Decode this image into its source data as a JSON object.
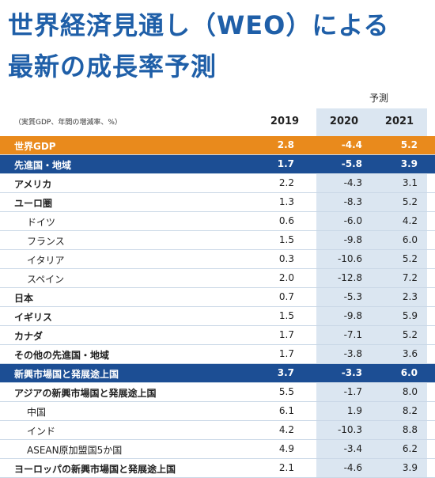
{
  "title": {
    "line1": "世界経済見通し（WEO）による",
    "line2": "最新の成長率予測"
  },
  "forecast_label": "予測",
  "table": {
    "note": "（実質GDP、年間の増減率、%）",
    "years": [
      "2019",
      "2020",
      "2021"
    ],
    "rows": [
      {
        "label": "世界GDP",
        "level": 0,
        "style": "orange",
        "v2019": "2.8",
        "v2020": "-4.4",
        "v2021": "5.2"
      },
      {
        "label": "先進国・地域",
        "level": 0,
        "style": "blue",
        "v2019": "1.7",
        "v2020": "-5.8",
        "v2021": "3.9"
      },
      {
        "label": "アメリカ",
        "level": 0,
        "style": "plain",
        "v2019": "2.2",
        "v2020": "-4.3",
        "v2021": "3.1"
      },
      {
        "label": "ユーロ圏",
        "level": 0,
        "style": "plain",
        "v2019": "1.3",
        "v2020": "-8.3",
        "v2021": "5.2"
      },
      {
        "label": "ドイツ",
        "level": 1,
        "style": "plain",
        "v2019": "0.6",
        "v2020": "-6.0",
        "v2021": "4.2"
      },
      {
        "label": "フランス",
        "level": 1,
        "style": "plain",
        "v2019": "1.5",
        "v2020": "-9.8",
        "v2021": "6.0"
      },
      {
        "label": "イタリア",
        "level": 1,
        "style": "plain",
        "v2019": "0.3",
        "v2020": "-10.6",
        "v2021": "5.2"
      },
      {
        "label": "スペイン",
        "level": 1,
        "style": "plain",
        "v2019": "2.0",
        "v2020": "-12.8",
        "v2021": "7.2"
      },
      {
        "label": "日本",
        "level": 0,
        "style": "plain",
        "v2019": "0.7",
        "v2020": "-5.3",
        "v2021": "2.3"
      },
      {
        "label": "イギリス",
        "level": 0,
        "style": "plain",
        "v2019": "1.5",
        "v2020": "-9.8",
        "v2021": "5.9"
      },
      {
        "label": "カナダ",
        "level": 0,
        "style": "plain",
        "v2019": "1.7",
        "v2020": "-7.1",
        "v2021": "5.2"
      },
      {
        "label": "その他の先進国・地域",
        "level": 0,
        "style": "plain",
        "v2019": "1.7",
        "v2020": "-3.8",
        "v2021": "3.6"
      },
      {
        "label": "新興市場国と発展途上国",
        "level": 0,
        "style": "blue",
        "v2019": "3.7",
        "v2020": "-3.3",
        "v2021": "6.0"
      },
      {
        "label": "アジアの新興市場国と発展途上国",
        "level": 0,
        "style": "plain",
        "v2019": "5.5",
        "v2020": "-1.7",
        "v2021": "8.0"
      },
      {
        "label": "中国",
        "level": 1,
        "style": "plain",
        "v2019": "6.1",
        "v2020": "1.9",
        "v2021": "8.2"
      },
      {
        "label": "インド",
        "level": 1,
        "style": "plain",
        "v2019": "4.2",
        "v2020": "-10.3",
        "v2021": "8.8"
      },
      {
        "label": "ASEAN原加盟国5か国",
        "level": 1,
        "style": "plain",
        "v2019": "4.9",
        "v2020": "-3.4",
        "v2021": "6.2"
      },
      {
        "label": "ヨーロッパの新興市場国と発展途上国",
        "level": 0,
        "style": "plain",
        "v2019": "2.1",
        "v2020": "-4.6",
        "v2021": "3.9"
      }
    ]
  }
}
